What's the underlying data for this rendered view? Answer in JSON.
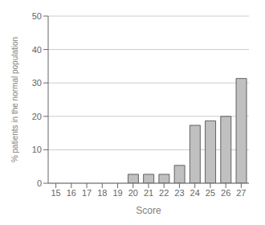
{
  "chart_data": {
    "type": "bar",
    "categories": [
      "15",
      "16",
      "17",
      "18",
      "19",
      "20",
      "21",
      "22",
      "23",
      "24",
      "25",
      "26",
      "27"
    ],
    "values": [
      0,
      0,
      0,
      0,
      0,
      2.67,
      2.67,
      2.67,
      5.33,
      17.33,
      18.67,
      20.0,
      31.33
    ],
    "color": "#c0c0c0",
    "xlabel": "Score",
    "ylabel": "% patients in the normal population",
    "ylim": [
      0,
      50
    ],
    "yticks": [
      0,
      10,
      20,
      30,
      40,
      50
    ],
    "grid": true
  }
}
